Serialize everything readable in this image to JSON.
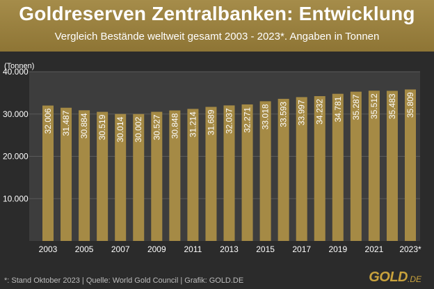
{
  "header": {
    "title": "Goldreserven Zentralbanken: Entwicklung",
    "subtitle": "Vergleich Bestände weltweit gesamt 2003 - 2023*. Angaben in Tonnen"
  },
  "footer": {
    "note": "*: Stand Oktober 2023  |  Quelle: World Gold Council  |  Grafik: GOLD.DE"
  },
  "logo": {
    "brand": "GOLD",
    "tld": ".DE"
  },
  "colors": {
    "background": "#2b2b2b",
    "plot_background": "#3d3d3d",
    "bar": "#a58a45",
    "header": "#9a8140",
    "accent": "#c9a23c"
  },
  "chart_data": {
    "type": "bar",
    "title": "Goldreserven Zentralbanken: Entwicklung",
    "subtitle": "Vergleich Bestände weltweit gesamt 2003 - 2023*. Angaben in Tonnen",
    "ylabel": "(Tonnen)",
    "xlabel": "",
    "ylim": [
      0,
      40000
    ],
    "yticks": [
      10000,
      20000,
      30000,
      40000
    ],
    "ytick_labels": [
      "10.000",
      "20.000",
      "30.000",
      "40.000"
    ],
    "categories": [
      "2003",
      "2004",
      "2005",
      "2006",
      "2007",
      "2008",
      "2009",
      "2010",
      "2011",
      "2012",
      "2013",
      "2014",
      "2015",
      "2016",
      "2017",
      "2018",
      "2019",
      "2020",
      "2021",
      "2022",
      "2023*"
    ],
    "values": [
      32006,
      31487,
      30884,
      30519,
      30014,
      30002,
      30527,
      30848,
      31214,
      31689,
      32037,
      32271,
      33018,
      33593,
      33997,
      34232,
      34781,
      35287,
      35512,
      35483,
      35809
    ],
    "value_labels": [
      "32.006",
      "31.487",
      "30.884",
      "30.519",
      "30.014",
      "30.002",
      "30.527",
      "30.848",
      "31.214",
      "31.689",
      "32.037",
      "32.271",
      "33.018",
      "33.593",
      "33.997",
      "34.232",
      "34.781",
      "35.287",
      "35.512",
      "35.483",
      "35.809"
    ],
    "x_tick_labels": [
      "2003",
      "",
      "2005",
      "",
      "2007",
      "",
      "2009",
      "",
      "2011",
      "",
      "2013",
      "",
      "2015",
      "",
      "2017",
      "",
      "2019",
      "",
      "2021",
      "",
      "2023*"
    ],
    "grid": true,
    "legend": "none"
  }
}
